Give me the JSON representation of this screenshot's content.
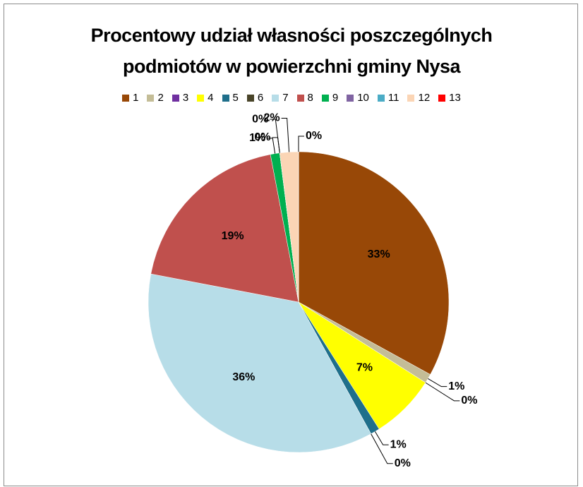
{
  "chart_data": {
    "type": "pie",
    "title": "Procentowy udział własności poszczególnych podmiotów w powierzchni gminy Nysa",
    "categories": [
      "1",
      "2",
      "3",
      "4",
      "5",
      "6",
      "7",
      "8",
      "9",
      "10",
      "11",
      "12",
      "13"
    ],
    "values": [
      33,
      1,
      0,
      7,
      1,
      0,
      36,
      19,
      1,
      0,
      0,
      2,
      0
    ],
    "value_labels": [
      "33%",
      "1%",
      "0%",
      "7%",
      "1%",
      "0%",
      "36%",
      "19%",
      "1%",
      "0%",
      "0%",
      "2%",
      "0%"
    ],
    "colors": [
      "#984807",
      "#c4bd97",
      "#7030a0",
      "#ffff00",
      "#1f6f8b",
      "#494429",
      "#b7dde8",
      "#c0504d",
      "#00b050",
      "#8064a2",
      "#4bacc6",
      "#fbd5b5",
      "#ff0000"
    ],
    "legend": "top"
  }
}
